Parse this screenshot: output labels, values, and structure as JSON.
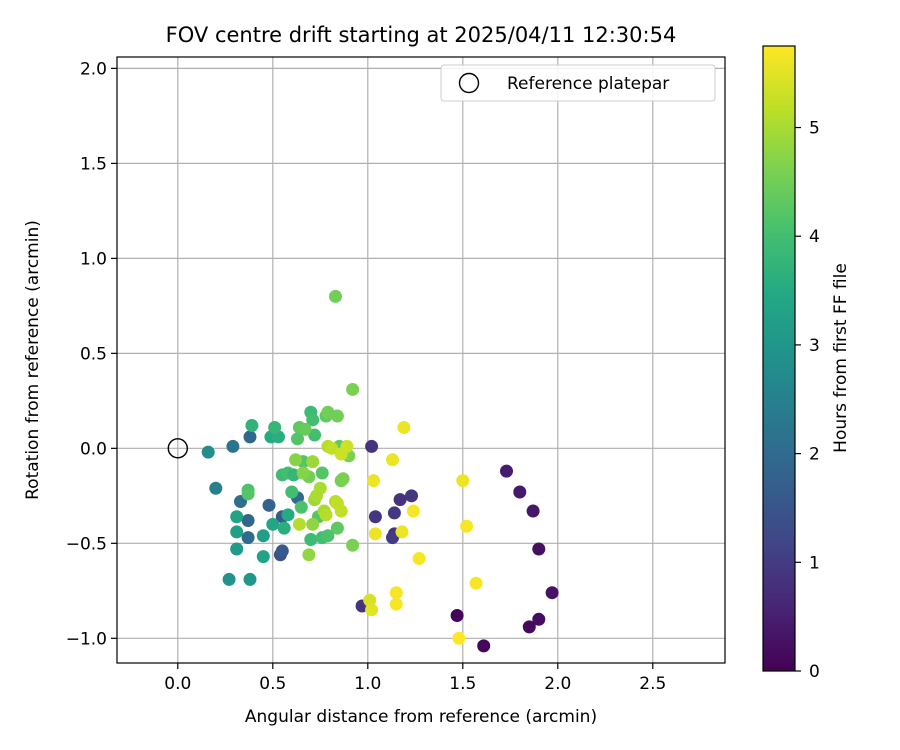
{
  "chart_data": {
    "type": "scatter",
    "title": "FOV centre drift starting at 2025/04/11 12:30:54",
    "xlabel": "Angular distance from reference (arcmin)",
    "ylabel": "Rotation from reference (arcmin)",
    "xlim": [
      -0.32,
      2.88
    ],
    "ylim": [
      -1.13,
      2.06
    ],
    "xticks": [
      "0.0",
      "0.5",
      "1.0",
      "1.5",
      "2.0",
      "2.5"
    ],
    "xtick_values": [
      0.0,
      0.5,
      1.0,
      1.5,
      2.0,
      2.5
    ],
    "yticks": [
      "−1.0",
      "−0.5",
      "0.0",
      "0.5",
      "1.0",
      "1.5",
      "2.0"
    ],
    "ytick_values": [
      -1.0,
      -0.5,
      0.0,
      0.5,
      1.0,
      1.5,
      2.0
    ],
    "grid": true,
    "legend": {
      "position": "top-right",
      "entries": [
        "Reference platepar"
      ]
    },
    "reference_point": {
      "x": 0.0,
      "y": 0.0
    },
    "colorbar": {
      "label": "Hours from first FF file",
      "colormap": "viridis",
      "range": [
        0,
        5.75
      ],
      "ticks": [
        "0",
        "1",
        "2",
        "3",
        "4",
        "5"
      ],
      "tick_values": [
        0,
        1,
        2,
        3,
        4,
        5
      ]
    },
    "points": [
      {
        "x": 1.47,
        "y": -0.88,
        "h": 0.05
      },
      {
        "x": 1.61,
        "y": -1.04,
        "h": 0.1
      },
      {
        "x": 1.85,
        "y": -0.94,
        "h": 0.15
      },
      {
        "x": 1.9,
        "y": -0.9,
        "h": 0.2
      },
      {
        "x": 1.97,
        "y": -0.76,
        "h": 0.3
      },
      {
        "x": 1.9,
        "y": -0.53,
        "h": 0.25
      },
      {
        "x": 1.87,
        "y": -0.33,
        "h": 0.35
      },
      {
        "x": 1.8,
        "y": -0.23,
        "h": 0.4
      },
      {
        "x": 1.73,
        "y": -0.12,
        "h": 0.45
      },
      {
        "x": 1.23,
        "y": -0.25,
        "h": 0.9
      },
      {
        "x": 1.17,
        "y": -0.27,
        "h": 0.85
      },
      {
        "x": 1.14,
        "y": -0.34,
        "h": 0.95
      },
      {
        "x": 1.14,
        "y": -0.45,
        "h": 0.8
      },
      {
        "x": 1.13,
        "y": -0.47,
        "h": 1.0
      },
      {
        "x": 1.04,
        "y": -0.36,
        "h": 0.9
      },
      {
        "x": 1.02,
        "y": 0.01,
        "h": 0.85
      },
      {
        "x": 0.97,
        "y": -0.83,
        "h": 0.85
      },
      {
        "x": 0.54,
        "y": -0.56,
        "h": 1.5
      },
      {
        "x": 0.55,
        "y": -0.54,
        "h": 1.6
      },
      {
        "x": 0.55,
        "y": -0.36,
        "h": 1.6
      },
      {
        "x": 0.48,
        "y": -0.3,
        "h": 1.8
      },
      {
        "x": 0.38,
        "y": 0.06,
        "h": 1.9
      },
      {
        "x": 0.37,
        "y": -0.38,
        "h": 1.9
      },
      {
        "x": 0.37,
        "y": -0.47,
        "h": 2.0
      },
      {
        "x": 0.33,
        "y": -0.28,
        "h": 2.1
      },
      {
        "x": 0.29,
        "y": 0.01,
        "h": 2.2
      },
      {
        "x": 0.63,
        "y": -0.26,
        "h": 2.0
      },
      {
        "x": 0.2,
        "y": -0.21,
        "h": 2.5
      },
      {
        "x": 0.16,
        "y": -0.02,
        "h": 2.8
      },
      {
        "x": 0.27,
        "y": -0.69,
        "h": 2.9
      },
      {
        "x": 0.38,
        "y": -0.69,
        "h": 3.0
      },
      {
        "x": 0.31,
        "y": -0.53,
        "h": 3.1
      },
      {
        "x": 0.31,
        "y": -0.44,
        "h": 3.2
      },
      {
        "x": 0.31,
        "y": -0.36,
        "h": 3.3
      },
      {
        "x": 0.45,
        "y": -0.46,
        "h": 3.2
      },
      {
        "x": 0.45,
        "y": -0.57,
        "h": 3.3
      },
      {
        "x": 0.5,
        "y": -0.4,
        "h": 3.4
      },
      {
        "x": 0.58,
        "y": -0.35,
        "h": 3.5
      },
      {
        "x": 0.56,
        "y": -0.42,
        "h": 3.6
      },
      {
        "x": 0.49,
        "y": 0.06,
        "h": 3.5
      },
      {
        "x": 0.53,
        "y": 0.06,
        "h": 3.6
      },
      {
        "x": 0.39,
        "y": 0.12,
        "h": 3.7
      },
      {
        "x": 0.51,
        "y": 0.11,
        "h": 3.8
      },
      {
        "x": 0.55,
        "y": -0.14,
        "h": 3.9
      },
      {
        "x": 0.58,
        "y": -0.13,
        "h": 4.0
      },
      {
        "x": 0.6,
        "y": -0.23,
        "h": 4.0
      },
      {
        "x": 0.61,
        "y": -0.14,
        "h": 3.8
      },
      {
        "x": 0.37,
        "y": -0.22,
        "h": 4.1
      },
      {
        "x": 0.37,
        "y": -0.24,
        "h": 4.2
      },
      {
        "x": 0.65,
        "y": -0.31,
        "h": 4.1
      },
      {
        "x": 0.7,
        "y": -0.48,
        "h": 3.9
      },
      {
        "x": 0.74,
        "y": -0.36,
        "h": 4.2
      },
      {
        "x": 0.76,
        "y": -0.47,
        "h": 4.0
      },
      {
        "x": 0.79,
        "y": -0.46,
        "h": 4.1
      },
      {
        "x": 0.84,
        "y": -0.42,
        "h": 4.3
      },
      {
        "x": 0.7,
        "y": 0.19,
        "h": 3.9
      },
      {
        "x": 0.71,
        "y": 0.15,
        "h": 4.0
      },
      {
        "x": 0.72,
        "y": 0.07,
        "h": 4.0
      },
      {
        "x": 0.63,
        "y": 0.05,
        "h": 4.2
      },
      {
        "x": 0.64,
        "y": 0.11,
        "h": 4.3
      },
      {
        "x": 0.67,
        "y": 0.1,
        "h": 4.4
      },
      {
        "x": 0.66,
        "y": -0.07,
        "h": 4.2
      },
      {
        "x": 0.69,
        "y": -0.15,
        "h": 4.5
      },
      {
        "x": 0.76,
        "y": -0.13,
        "h": 4.2
      },
      {
        "x": 0.78,
        "y": 0.17,
        "h": 4.3
      },
      {
        "x": 0.79,
        "y": 0.19,
        "h": 4.5
      },
      {
        "x": 0.84,
        "y": 0.17,
        "h": 4.5
      },
      {
        "x": 0.85,
        "y": 0.01,
        "h": 4.3
      },
      {
        "x": 0.86,
        "y": -0.17,
        "h": 4.5
      },
      {
        "x": 0.87,
        "y": -0.16,
        "h": 4.6
      },
      {
        "x": 0.9,
        "y": -0.04,
        "h": 4.6
      },
      {
        "x": 0.92,
        "y": 0.31,
        "h": 4.6
      },
      {
        "x": 0.92,
        "y": -0.51,
        "h": 4.6
      },
      {
        "x": 0.83,
        "y": 0.8,
        "h": 4.5
      },
      {
        "x": 0.62,
        "y": -0.06,
        "h": 4.7
      },
      {
        "x": 0.66,
        "y": -0.13,
        "h": 4.7
      },
      {
        "x": 0.69,
        "y": -0.56,
        "h": 4.8
      },
      {
        "x": 0.71,
        "y": -0.4,
        "h": 4.8
      },
      {
        "x": 0.71,
        "y": -0.07,
        "h": 4.9
      },
      {
        "x": 0.72,
        "y": -0.27,
        "h": 4.9
      },
      {
        "x": 0.73,
        "y": -0.25,
        "h": 5.0
      },
      {
        "x": 0.75,
        "y": -0.21,
        "h": 5.0
      },
      {
        "x": 0.77,
        "y": -0.33,
        "h": 5.0
      },
      {
        "x": 0.78,
        "y": -0.35,
        "h": 5.1
      },
      {
        "x": 0.64,
        "y": -0.4,
        "h": 5.1
      },
      {
        "x": 0.79,
        "y": 0.01,
        "h": 5.1
      },
      {
        "x": 0.81,
        "y": 0.0,
        "h": 5.2
      },
      {
        "x": 0.83,
        "y": -0.28,
        "h": 5.1
      },
      {
        "x": 0.84,
        "y": -0.29,
        "h": 5.2
      },
      {
        "x": 0.86,
        "y": -0.33,
        "h": 5.2
      },
      {
        "x": 0.86,
        "y": -0.03,
        "h": 5.3
      },
      {
        "x": 0.89,
        "y": 0.01,
        "h": 5.3
      },
      {
        "x": 1.01,
        "y": -0.8,
        "h": 5.4
      },
      {
        "x": 1.02,
        "y": -0.85,
        "h": 5.5
      },
      {
        "x": 1.03,
        "y": -0.17,
        "h": 5.6
      },
      {
        "x": 1.04,
        "y": -0.45,
        "h": 5.6
      },
      {
        "x": 1.13,
        "y": -0.06,
        "h": 5.6
      },
      {
        "x": 1.15,
        "y": -0.76,
        "h": 5.7
      },
      {
        "x": 1.15,
        "y": -0.82,
        "h": 5.7
      },
      {
        "x": 1.18,
        "y": -0.44,
        "h": 5.6
      },
      {
        "x": 1.19,
        "y": 0.11,
        "h": 5.6
      },
      {
        "x": 1.24,
        "y": -0.33,
        "h": 5.7
      },
      {
        "x": 1.27,
        "y": -0.58,
        "h": 5.7
      },
      {
        "x": 1.48,
        "y": -1.0,
        "h": 5.75
      },
      {
        "x": 1.5,
        "y": -0.17,
        "h": 5.6
      },
      {
        "x": 1.52,
        "y": -0.41,
        "h": 5.7
      },
      {
        "x": 1.57,
        "y": -0.71,
        "h": 5.7
      }
    ]
  }
}
